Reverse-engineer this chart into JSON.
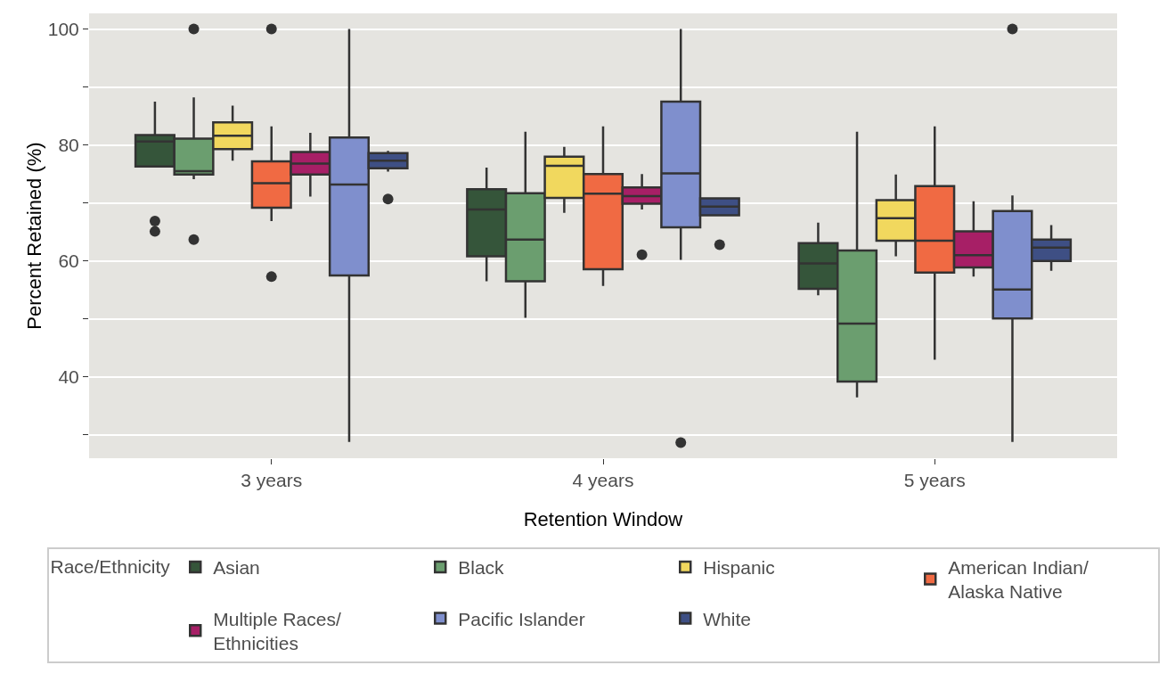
{
  "chart_data": {
    "type": "box",
    "xlabel": "Retention Window",
    "ylabel": "Percent Retained (%)",
    "legend_title": "Race/Ethnicity",
    "legend": "bottom",
    "grid": "y",
    "categories": [
      "3 years",
      "4 years",
      "5 years"
    ],
    "ylim": [
      26,
      102.7
    ],
    "yticks": [
      {
        "value": 30,
        "label": null
      },
      40,
      {
        "value": 50,
        "label": null
      },
      60,
      {
        "value": 70,
        "label": null
      },
      80,
      {
        "value": 90,
        "label": null
      },
      100
    ],
    "series": [
      {
        "name": "Asian",
        "color": "#35553a",
        "boxes": [
          {
            "low": 76.3,
            "q1": 76.3,
            "median": 80.6,
            "q3": 81.7,
            "high": 87.5,
            "outliers": [
              66.9,
              65.1
            ]
          },
          {
            "low": 56.5,
            "q1": 60.8,
            "median": 68.9,
            "q3": 72.4,
            "high": 76.1
          },
          {
            "low": 54.1,
            "q1": 55.2,
            "median": 59.6,
            "q3": 63.1,
            "high": 66.6
          }
        ]
      },
      {
        "name": "Black",
        "color": "#6b9e6f",
        "boxes": [
          {
            "low": 74.1,
            "q1": 74.9,
            "median": 75.5,
            "q3": 81.1,
            "high": 88.2,
            "outliers": [
              100,
              63.7
            ]
          },
          {
            "low": 50.2,
            "q1": 56.5,
            "median": 63.7,
            "q3": 71.7,
            "high": 82.3
          },
          {
            "low": 36.5,
            "q1": 39.2,
            "median": 49.2,
            "q3": 61.8,
            "high": 82.3
          }
        ]
      },
      {
        "name": "Hispanic",
        "color": "#f1d85e",
        "boxes": [
          {
            "low": 77.3,
            "q1": 79.3,
            "median": 81.6,
            "q3": 83.9,
            "high": 86.8
          },
          {
            "low": 68.3,
            "q1": 70.9,
            "median": 76.4,
            "q3": 78.0,
            "high": 79.7
          },
          {
            "low": 60.8,
            "q1": 63.5,
            "median": 67.4,
            "q3": 70.5,
            "high": 74.9
          }
        ]
      },
      {
        "name": "American Indian/\nAlaska Native",
        "color": "#f06a43",
        "boxes": [
          {
            "low": 66.9,
            "q1": 69.2,
            "median": 73.4,
            "q3": 77.2,
            "high": 83.2,
            "outliers": [
              100,
              57.3
            ]
          },
          {
            "low": 55.7,
            "q1": 58.6,
            "median": 71.6,
            "q3": 75.0,
            "high": 83.2
          },
          {
            "low": 43.0,
            "q1": 58.0,
            "median": 63.5,
            "q3": 72.9,
            "high": 83.2
          }
        ]
      },
      {
        "name": "Multiple Races/\nEthnicities",
        "color": "#a71f66",
        "boxes": [
          {
            "low": 71.1,
            "q1": 74.9,
            "median": 76.8,
            "q3": 78.8,
            "high": 82.1
          },
          {
            "low": 68.9,
            "q1": 69.9,
            "median": 71.2,
            "q3": 72.7,
            "high": 75.0,
            "outliers": [
              61.1
            ]
          },
          {
            "low": 57.3,
            "q1": 58.9,
            "median": 61.0,
            "q3": 65.1,
            "high": 70.3
          }
        ]
      },
      {
        "name": "Pacific Islander",
        "color": "#7f8fcd",
        "boxes": [
          {
            "low": 28.8,
            "q1": 57.5,
            "median": 73.2,
            "q3": 81.3,
            "high": 100
          },
          {
            "low": 60.2,
            "q1": 65.8,
            "median": 75.1,
            "q3": 87.5,
            "high": 100,
            "outliers": [
              28.7
            ]
          },
          {
            "low": 28.8,
            "q1": 50.1,
            "median": 55.1,
            "q3": 68.6,
            "high": 71.3,
            "outliers": [
              100
            ]
          }
        ]
      },
      {
        "name": "White",
        "color": "#3e4f84",
        "boxes": [
          {
            "low": 75.4,
            "q1": 76.0,
            "median": 77.3,
            "q3": 78.6,
            "high": 79.0,
            "outliers": [
              70.7
            ]
          },
          {
            "low": 67.9,
            "q1": 67.9,
            "median": 69.4,
            "q3": 70.8,
            "high": 70.8,
            "outliers": [
              62.8
            ]
          },
          {
            "low": 58.3,
            "q1": 60.0,
            "median": 62.3,
            "q3": 63.7,
            "high": 66.2
          }
        ]
      }
    ]
  }
}
